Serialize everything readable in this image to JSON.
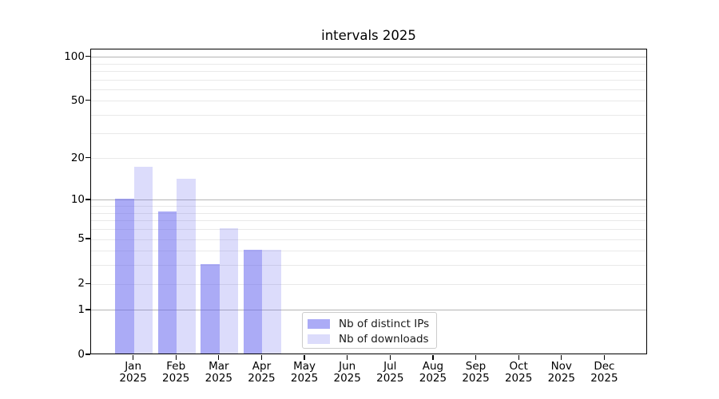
{
  "chart_data": {
    "type": "bar",
    "title": "intervals 2025",
    "categories": [
      "Jan 2025",
      "Feb 2025",
      "Mar 2025",
      "Apr 2025",
      "May 2025",
      "Jun 2025",
      "Jul 2025",
      "Aug 2025",
      "Sep 2025",
      "Oct 2025",
      "Nov 2025",
      "Dec 2025"
    ],
    "series": [
      {
        "name": "Nb of distinct IPs",
        "fill": "rgba(102,102,238,0.55)",
        "values": [
          10,
          8,
          3,
          4,
          0,
          0,
          0,
          0,
          0,
          0,
          0,
          0
        ]
      },
      {
        "name": "Nb of downloads",
        "fill": "rgba(102,102,238,0.23)",
        "values": [
          17,
          14,
          6,
          4,
          0,
          0,
          0,
          0,
          0,
          0,
          0,
          0
        ]
      }
    ],
    "xlabel": "",
    "ylabel": "",
    "yscale": "log1p",
    "ylim": [
      0,
      113
    ],
    "y_ticks": [
      0,
      1,
      2,
      5,
      10,
      20,
      50,
      100
    ],
    "grid": {
      "major": [
        1,
        10,
        100
      ],
      "minor": [
        2,
        3,
        4,
        5,
        6,
        7,
        8,
        9,
        20,
        30,
        40,
        50,
        60,
        70,
        80,
        90
      ],
      "major_color": "#b4b4b4",
      "minor_color": "#e9e9e9"
    },
    "legend_position": "inside lower center",
    "spine_color": "#000000",
    "background_color": "#ffffff"
  }
}
